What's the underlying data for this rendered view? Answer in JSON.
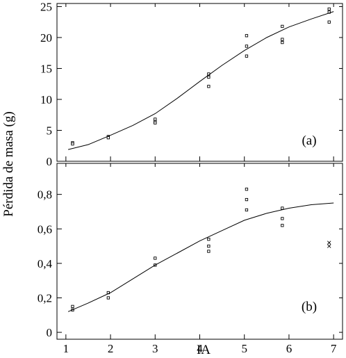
{
  "figure": {
    "ylabel": "Pérdida de masa (g)",
    "xlabel": "IA"
  },
  "chart_data": [
    {
      "type": "scatter",
      "panel_label": "(a)",
      "xlim": [
        0.8,
        7.2
      ],
      "ylim": [
        0,
        25.5
      ],
      "x_ticks": [
        1,
        2,
        3,
        4,
        5,
        6,
        7
      ],
      "x_tick_labels": [
        "",
        "",
        "",
        "",
        "",
        "",
        ""
      ],
      "y_ticks": [
        0,
        5,
        10,
        15,
        20,
        25
      ],
      "y_tick_labels": [
        "0",
        "5",
        "10",
        "15",
        "20",
        "25"
      ],
      "grid": false,
      "series": [
        {
          "marker": "square",
          "points": [
            [
              1.15,
              3.0
            ],
            [
              1.15,
              2.8
            ],
            [
              1.95,
              4.0
            ],
            [
              1.95,
              3.8
            ],
            [
              3.0,
              6.8
            ],
            [
              3.0,
              6.4
            ],
            [
              3.0,
              6.2
            ],
            [
              4.2,
              14.1
            ],
            [
              4.2,
              13.6
            ],
            [
              4.2,
              12.1
            ],
            [
              5.05,
              20.3
            ],
            [
              5.05,
              18.6
            ],
            [
              5.05,
              17.0
            ],
            [
              5.85,
              21.8
            ],
            [
              5.85,
              19.7
            ],
            [
              5.85,
              19.2
            ],
            [
              6.9,
              24.6
            ],
            [
              6.9,
              24.1
            ],
            [
              6.9,
              22.5
            ]
          ]
        },
        {
          "type": "line",
          "points": [
            [
              1.05,
              1.9
            ],
            [
              1.5,
              2.7
            ],
            [
              2.0,
              4.2
            ],
            [
              2.5,
              5.8
            ],
            [
              3.0,
              7.7
            ],
            [
              3.5,
              10.2
            ],
            [
              4.0,
              12.9
            ],
            [
              4.5,
              15.5
            ],
            [
              5.0,
              17.9
            ],
            [
              5.5,
              20.0
            ],
            [
              6.0,
              21.7
            ],
            [
              6.5,
              23.0
            ],
            [
              7.0,
              24.2
            ]
          ]
        }
      ]
    },
    {
      "type": "scatter",
      "panel_label": "(b)",
      "xlim": [
        0.8,
        7.2
      ],
      "ylim": [
        -0.04,
        0.98
      ],
      "x_ticks": [
        1,
        2,
        3,
        4,
        5,
        6,
        7
      ],
      "x_tick_labels": [
        "1",
        "2",
        "3",
        "4",
        "5",
        "6",
        "7"
      ],
      "y_ticks": [
        0,
        0.2,
        0.4,
        0.6,
        0.8
      ],
      "y_tick_labels": [
        "0",
        "0,2",
        "0,4",
        "0,6",
        "0,8"
      ],
      "grid": false,
      "series": [
        {
          "marker": "square",
          "points": [
            [
              1.15,
              0.15
            ],
            [
              1.15,
              0.13
            ],
            [
              1.95,
              0.23
            ],
            [
              1.95,
              0.2
            ],
            [
              3.0,
              0.43
            ],
            [
              3.0,
              0.39
            ],
            [
              4.2,
              0.54
            ],
            [
              4.2,
              0.5
            ],
            [
              4.2,
              0.47
            ],
            [
              5.05,
              0.83
            ],
            [
              5.05,
              0.77
            ],
            [
              5.05,
              0.71
            ],
            [
              5.85,
              0.72
            ],
            [
              5.85,
              0.66
            ],
            [
              5.85,
              0.62
            ]
          ]
        },
        {
          "marker": "x",
          "points": [
            [
              6.9,
              0.52
            ],
            [
              6.9,
              0.5
            ]
          ]
        },
        {
          "type": "line",
          "points": [
            [
              1.05,
              0.12
            ],
            [
              1.5,
              0.17
            ],
            [
              2.0,
              0.23
            ],
            [
              2.5,
              0.31
            ],
            [
              3.0,
              0.39
            ],
            [
              3.5,
              0.46
            ],
            [
              4.0,
              0.53
            ],
            [
              4.5,
              0.59
            ],
            [
              5.0,
              0.65
            ],
            [
              5.5,
              0.69
            ],
            [
              6.0,
              0.72
            ],
            [
              6.5,
              0.74
            ],
            [
              7.0,
              0.75
            ]
          ]
        }
      ]
    }
  ]
}
